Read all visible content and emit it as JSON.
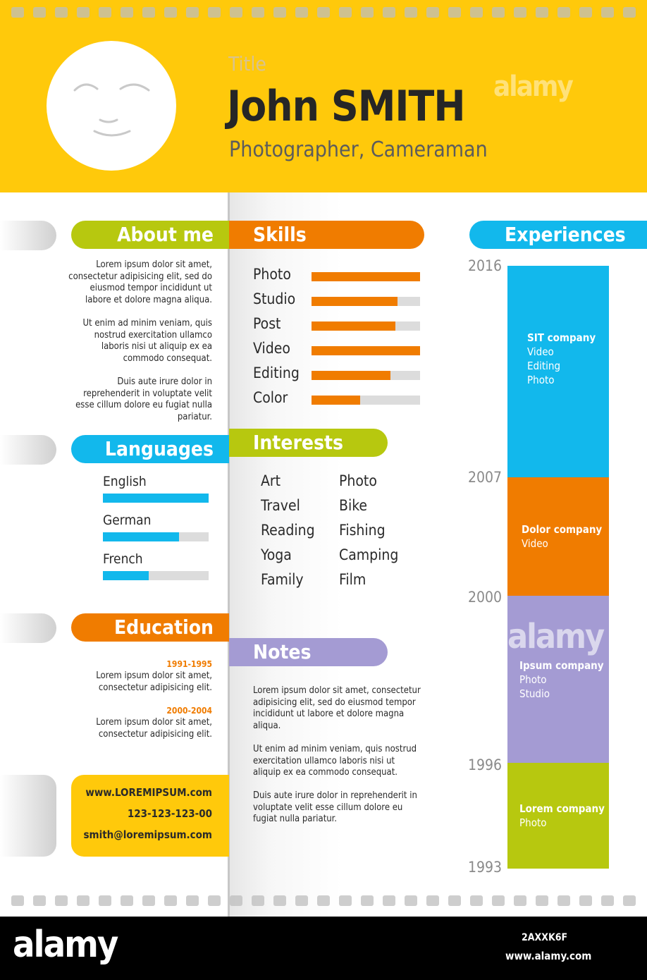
{
  "header": {
    "title": "Title",
    "name": "John SMITH",
    "job": "Photographer, Cameraman"
  },
  "about": {
    "heading": "About me",
    "paragraphs": [
      "Lorem ipsum dolor sit amet, consectetur adipisicing elit, sed do eiusmod tempor incididunt ut labore et dolore magna aliqua.",
      "Ut enim ad minim veniam, quis nostrud exercitation ullamco laboris nisi ut aliquip ex ea commodo consequat.",
      "Duis aute irure dolor in reprehenderit in voluptate velit esse cillum dolore eu fugiat nulla pariatur."
    ]
  },
  "languages": {
    "heading": "Languages",
    "items": [
      {
        "label": "English",
        "level": 1.0
      },
      {
        "label": "German",
        "level": 0.72
      },
      {
        "label": "French",
        "level": 0.43
      }
    ]
  },
  "education": {
    "heading": "Education",
    "items": [
      {
        "years": "1991-1995",
        "line1": "Lorem ipsum dolor sit amet,",
        "line2": "consectetur adipisicing elit."
      },
      {
        "years": "2000-2004",
        "line1": "Lorem ipsum dolor sit amet,",
        "line2": "consectetur adipisicing elit."
      }
    ]
  },
  "contact": {
    "website": "www.LOREMIPSUM.com",
    "phone": "123-123-123-00",
    "email": "smith@loremipsum.com"
  },
  "skills": {
    "heading": "Skills",
    "items": [
      {
        "label": "Photo",
        "level": 1.0
      },
      {
        "label": "Studio",
        "level": 0.79
      },
      {
        "label": "Post",
        "level": 0.77
      },
      {
        "label": "Video",
        "level": 1.0
      },
      {
        "label": "Editing",
        "level": 0.73
      },
      {
        "label": "Color",
        "level": 0.45
      }
    ]
  },
  "interests": {
    "heading": "Interests",
    "col1": [
      "Art",
      "Travel",
      "Reading",
      "Yoga",
      "Family"
    ],
    "col2": [
      "Photo",
      "Bike",
      "Fishing",
      "Camping",
      "Film"
    ]
  },
  "notes": {
    "heading": "Notes",
    "paragraphs": [
      "Lorem ipsum dolor sit amet, consectetur adipisicing elit, sed do eiusmod tempor incididunt ut labore et dolore magna aliqua.",
      "Ut enim ad minim veniam, quis nostrud exercitation ullamco laboris nisi ut aliquip ex ea commodo consequat.",
      "Duis aute irure dolor in reprehenderit in voluptate velit esse cillum dolore eu fugiat nulla pariatur."
    ]
  },
  "experiences": {
    "heading": "Experiences",
    "years": [
      "2016",
      "2007",
      "2000",
      "1996",
      "1993"
    ],
    "blocks": [
      {
        "company": "SIT company",
        "roles": [
          "Video",
          "Editing",
          "Photo"
        ],
        "color": "#12b8ec"
      },
      {
        "company": "Dolor company",
        "roles": [
          "Video"
        ],
        "color": "#f07c00"
      },
      {
        "company": "Ipsum company",
        "roles": [
          "Photo",
          "Studio"
        ],
        "color": "#a49bd3"
      },
      {
        "company": "Lorem company",
        "roles": [
          "Photo"
        ],
        "color": "#b7c80f"
      }
    ]
  },
  "colors": {
    "yellow": "#ffc90b",
    "green": "#b7c80f",
    "orange": "#f07c00",
    "blue": "#12b8ec",
    "purple": "#a49bd3"
  },
  "watermark": {
    "logo": "alamy",
    "image_id": "2AXXK6F",
    "url": "www.alamy.com"
  }
}
